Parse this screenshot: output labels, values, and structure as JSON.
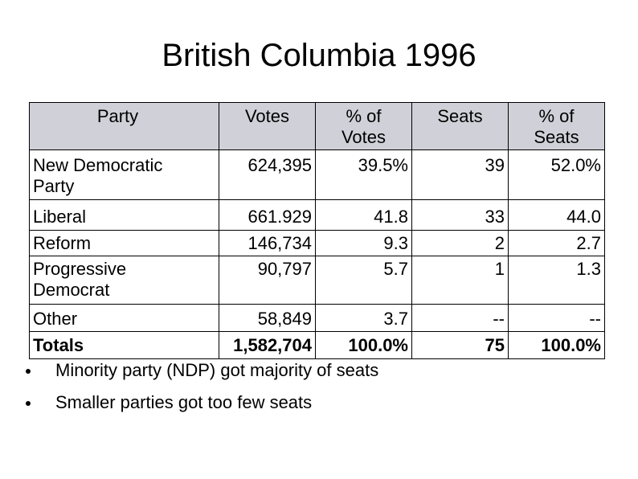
{
  "slide": {
    "title": "British Columbia 1996"
  },
  "table": {
    "headers": {
      "party": "Party",
      "votes": "Votes",
      "pct_votes_line1": "% of",
      "pct_votes_line2": "Votes",
      "seats": "Seats",
      "pct_seats_line1": "% of",
      "pct_seats_line2": "Seats"
    },
    "rows": [
      {
        "party_line1": "New Democratic",
        "party_line2": "Party",
        "votes": "624,395",
        "pct_votes": "39.5%",
        "seats": "39",
        "pct_seats": "52.0%"
      },
      {
        "party_line1": "Liberal",
        "votes": "661.929",
        "pct_votes": "41.8",
        "seats": "33",
        "pct_seats": "44.0"
      },
      {
        "party_line1": "Reform",
        "votes": "146,734",
        "pct_votes": "9.3",
        "seats": "2",
        "pct_seats": "2.7"
      },
      {
        "party_line1": "Progressive",
        "party_line2": "Democrat",
        "votes": "90,797",
        "pct_votes": "5.7",
        "seats": "1",
        "pct_seats": "1.3"
      },
      {
        "party_line1": "Other",
        "votes": "58,849",
        "pct_votes": "3.7",
        "seats": "--",
        "pct_seats": "--"
      }
    ],
    "totals": {
      "label": "Totals",
      "votes": "1,582,704",
      "pct_votes": "100.0%",
      "seats": "75",
      "pct_seats": "100.0%"
    }
  },
  "bullets": [
    "Minority party (NDP) got majority of seats",
    "Smaller parties got too few seats"
  ],
  "colors": {
    "header_background": "#d0d0d8",
    "text": "#000000",
    "background": "#ffffff"
  }
}
